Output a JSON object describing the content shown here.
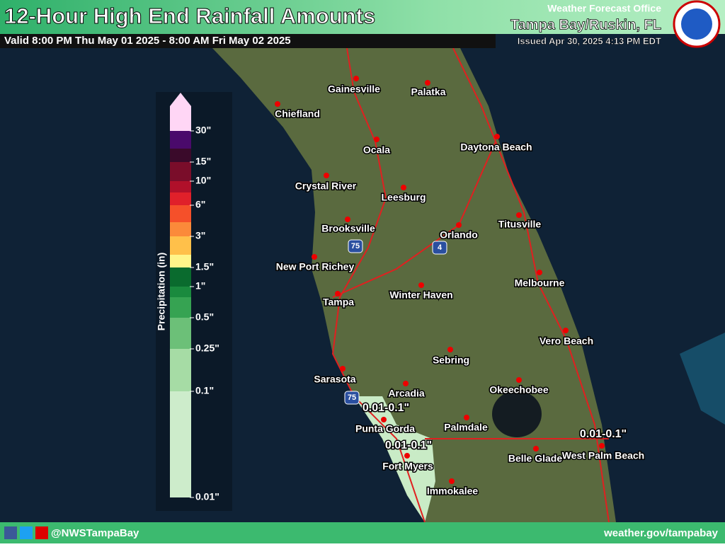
{
  "header": {
    "title": "12-Hour High End Rainfall Amounts",
    "valid": "Valid 8:00 PM Thu May 01 2025 - 8:00 AM Fri May 02 2025",
    "office_label": "Weather Forecast Office",
    "office": "Tampa Bay/Ruskin, FL",
    "issued": "Issued Apr 30, 2025 4:13 PM EDT"
  },
  "legend": {
    "title": "Precipitation (in)",
    "labels": [
      "30\"",
      "15\"",
      "10\"",
      "6\"",
      "3\"",
      "1.5\"",
      "1\"",
      "0.5\"",
      "0.25\"",
      "0.1\"",
      "0.01\""
    ]
  },
  "cities": [
    "Gainesville",
    "Palatka",
    "Chiefland",
    "Ocala",
    "Daytona Beach",
    "Crystal River",
    "Leesburg",
    "Titusville",
    "Brooksville",
    "Orlando",
    "New Port Richey",
    "Melbourne",
    "Tampa",
    "Winter Haven",
    "Vero Beach",
    "Sebring",
    "Sarasota",
    "Arcadia",
    "Okeechobee",
    "Punta Gorda",
    "Palmdale",
    "Belle Glade",
    "West Palm Beach",
    "Fort Myers",
    "Immokalee"
  ],
  "annotations": [
    "0.01-0.1\"",
    "0.01-0.1\"",
    "0.01-0.1\""
  ],
  "shields": [
    "75",
    "4",
    "75"
  ],
  "footer": {
    "handle": "@NWSTampaBay",
    "website": "weather.gov/tampabay"
  }
}
